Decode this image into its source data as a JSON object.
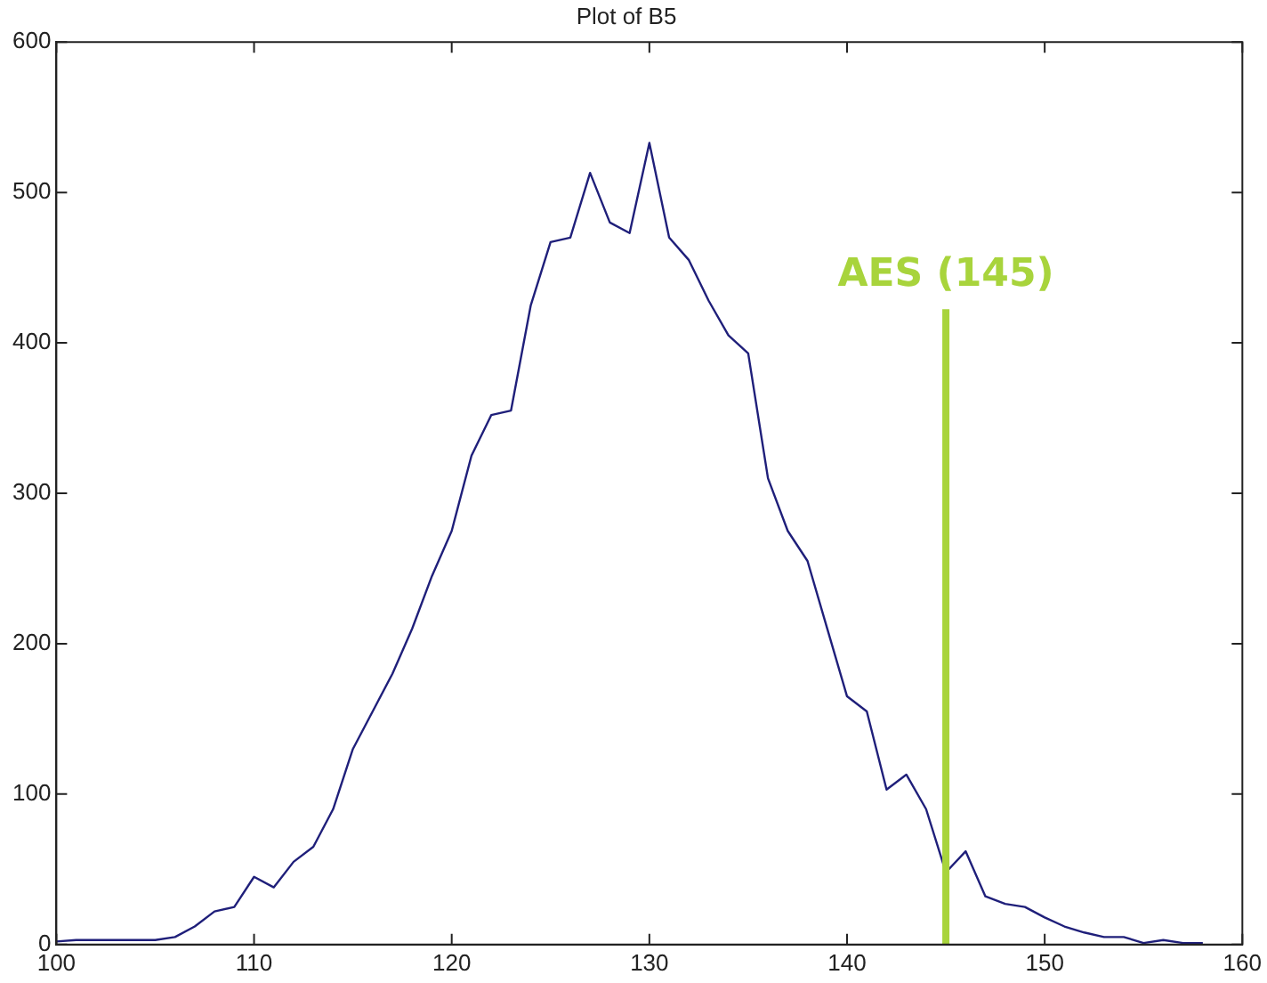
{
  "chart_data": {
    "type": "line",
    "title": "Plot of B5",
    "x": [
      100,
      101,
      102,
      103,
      104,
      105,
      106,
      107,
      108,
      109,
      110,
      111,
      112,
      113,
      114,
      115,
      116,
      117,
      118,
      119,
      120,
      121,
      122,
      123,
      124,
      125,
      126,
      127,
      128,
      129,
      130,
      131,
      132,
      133,
      134,
      135,
      136,
      137,
      138,
      139,
      140,
      141,
      142,
      143,
      144,
      145,
      146,
      147,
      148,
      149,
      150,
      151,
      152,
      153,
      154,
      155,
      156,
      157,
      158
    ],
    "series": [
      {
        "color": "#1f1f7a",
        "values": [
          2,
          3,
          3,
          3,
          3,
          3,
          5,
          12,
          22,
          25,
          45,
          38,
          55,
          65,
          90,
          130,
          155,
          180,
          210,
          245,
          275,
          325,
          352,
          355,
          425,
          467,
          470,
          513,
          480,
          473,
          533,
          470,
          455,
          428,
          405,
          393,
          310,
          275,
          255,
          210,
          165,
          155,
          103,
          113,
          90,
          48,
          62,
          32,
          27,
          25,
          18,
          12,
          8,
          5,
          5,
          1,
          3,
          1,
          1
        ]
      }
    ],
    "xlim": [
      100,
      160
    ],
    "xticks": [
      100,
      110,
      120,
      130,
      140,
      150,
      160
    ],
    "ylim": [
      0,
      600
    ],
    "yticks": [
      0,
      100,
      200,
      300,
      400,
      500,
      600
    ],
    "grid": false,
    "legend": false,
    "marker": "none",
    "line_style": "solid",
    "ref_lines": [
      {
        "axis": "x",
        "value": 145,
        "label": "AES (145)",
        "color": "#a8d43c"
      }
    ]
  }
}
